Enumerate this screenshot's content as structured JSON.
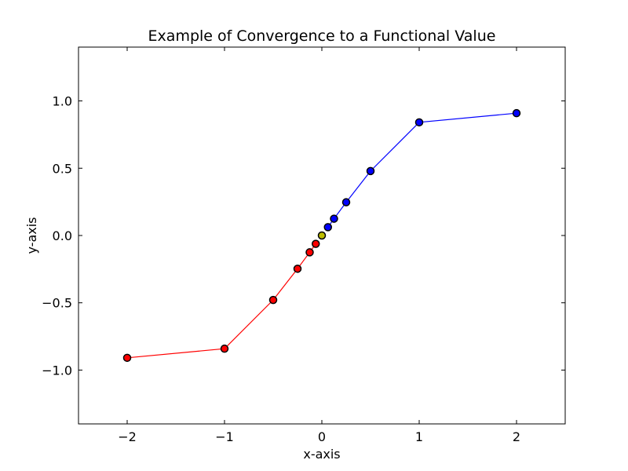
{
  "chart_data": {
    "type": "line",
    "title": "Example of Convergence to a Functional Value",
    "xlabel": "x-axis",
    "ylabel": "y-axis",
    "xlim": [
      -2.5,
      2.5
    ],
    "ylim": [
      -1.4,
      1.4
    ],
    "xticks": [
      -2,
      -1,
      0,
      1,
      2
    ],
    "xtick_labels": [
      "−2",
      "−1",
      "0",
      "1",
      "2"
    ],
    "yticks": [
      -1.0,
      -0.5,
      0.0,
      0.5,
      1.0
    ],
    "ytick_labels": [
      "−1.0",
      "−0.5",
      "0.0",
      "0.5",
      "1.0"
    ],
    "grid": false,
    "series": [
      {
        "color": "#ff0000",
        "marker_color": "#000000",
        "x": [
          -2,
          -1,
          -0.5,
          -0.25,
          -0.125,
          -0.0625
        ],
        "y": [
          -0.909,
          -0.841,
          -0.479,
          -0.247,
          -0.125,
          -0.062
        ]
      },
      {
        "color": "#0000ff",
        "marker_color": "#000000",
        "x": [
          2,
          1,
          0.5,
          0.25,
          0.125,
          0.0625
        ],
        "y": [
          0.909,
          0.841,
          0.479,
          0.247,
          0.125,
          0.062
        ]
      },
      {
        "color": "none",
        "marker_color": "#bfbf00",
        "x": [
          0
        ],
        "y": [
          0
        ]
      }
    ]
  }
}
